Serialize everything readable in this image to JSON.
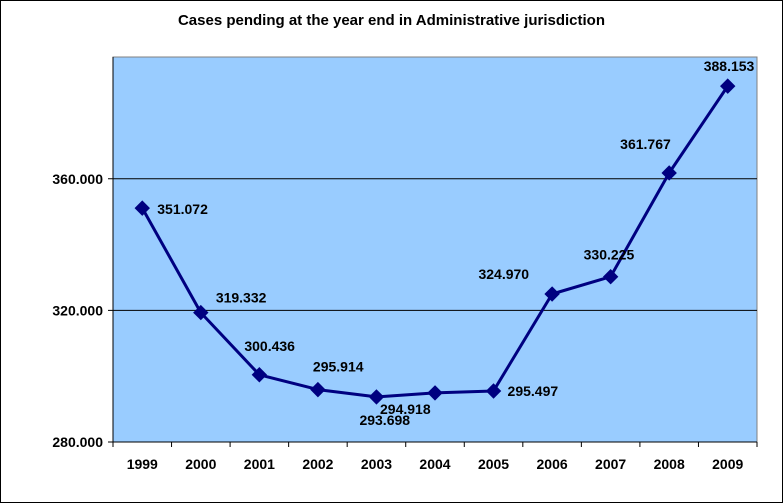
{
  "chart_data": {
    "type": "line",
    "title": "Cases pending at the year end in Administrative jurisdiction",
    "xlabel": "",
    "ylabel": "",
    "categories": [
      "1999",
      "2000",
      "2001",
      "2002",
      "2003",
      "2004",
      "2005",
      "2006",
      "2007",
      "2008",
      "2009"
    ],
    "series": [
      {
        "values": [
          351072,
          319332,
          300436,
          295914,
          293698,
          294918,
          295497,
          324970,
          330225,
          361767,
          388153
        ],
        "labels": [
          "351.072",
          "319.332",
          "300.436",
          "295.914",
          "293.698",
          "294.918",
          "295.497",
          "324.970",
          "330.225",
          "361.767",
          "388.153"
        ]
      }
    ],
    "ylim": [
      280000,
      397000
    ],
    "yticks": [
      280000,
      320000,
      360000
    ],
    "ytick_labels": [
      "280.000",
      "320.000",
      "360.000"
    ],
    "grid": true,
    "legend": "none",
    "colors": {
      "plot_background": "#99CCFF",
      "line": "#000080",
      "marker": "#000080",
      "gridline": "#000000"
    }
  }
}
